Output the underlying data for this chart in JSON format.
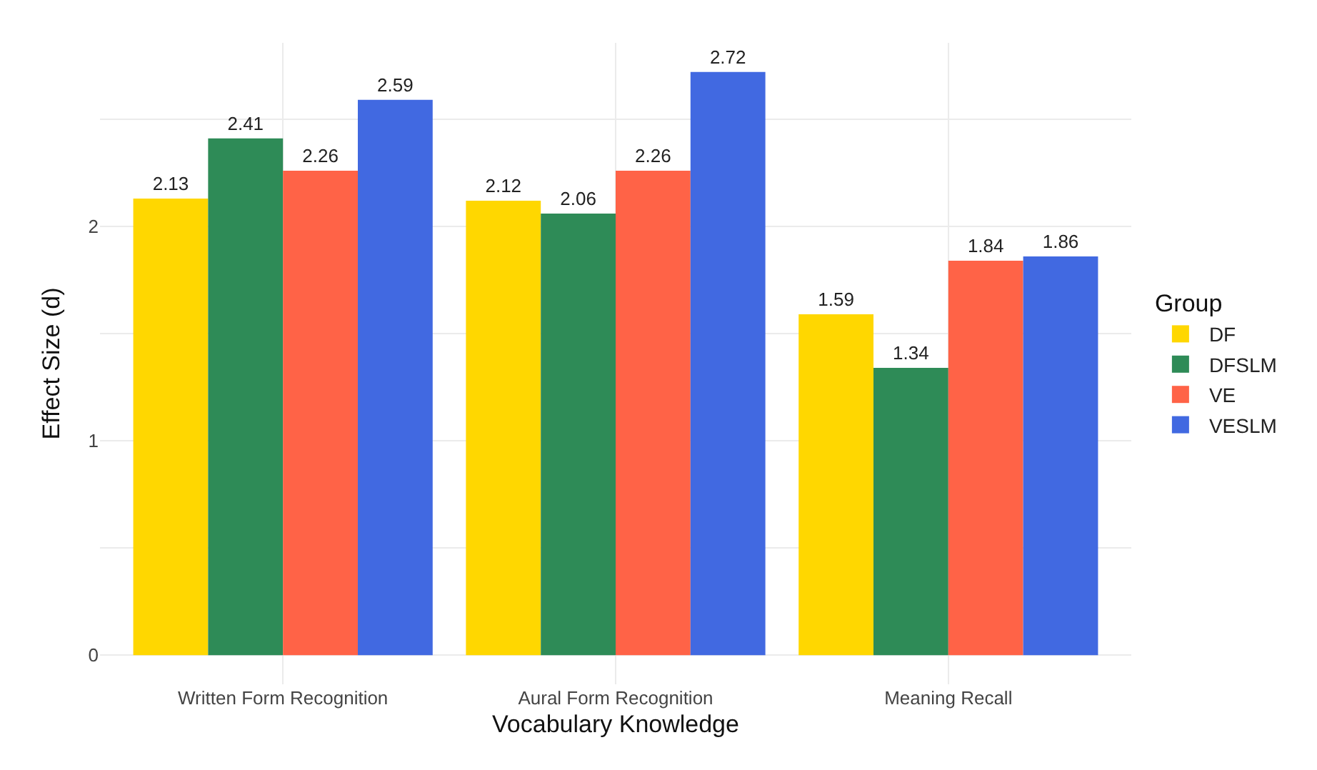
{
  "chart_data": {
    "type": "bar",
    "xlabel": "Vocabulary Knowledge",
    "ylabel": "Effect Size (d)",
    "legend_title": "Group",
    "categories": [
      "Written Form Recognition",
      "Aural Form Recognition",
      "Meaning Recall"
    ],
    "series": [
      {
        "name": "DF",
        "color": "#ffd700",
        "values": [
          2.13,
          2.12,
          1.59
        ]
      },
      {
        "name": "DFSLM",
        "color": "#2e8b57",
        "values": [
          2.41,
          2.06,
          1.34
        ]
      },
      {
        "name": "VE",
        "color": "#ff6347",
        "values": [
          2.26,
          2.26,
          1.84
        ]
      },
      {
        "name": "VESLM",
        "color": "#4169e1",
        "values": [
          2.59,
          2.72,
          1.86
        ]
      }
    ],
    "ylim": [
      -0.136,
      2.856
    ],
    "yticks": [
      0,
      {
        "value": 0.5,
        "label": null
      },
      1,
      {
        "value": 1.5,
        "label": null
      },
      2,
      {
        "value": 2.5,
        "label": null
      }
    ],
    "data_labels": true,
    "grid": true,
    "legend": "right"
  }
}
